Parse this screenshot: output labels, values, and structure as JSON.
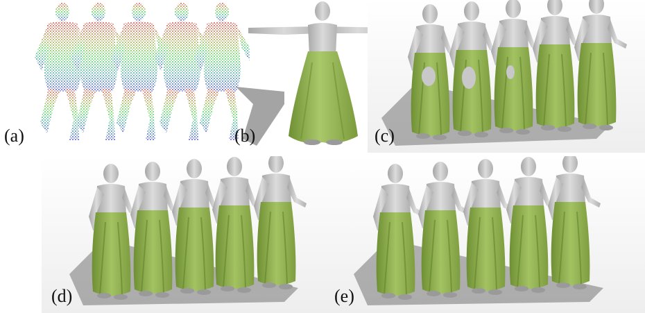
{
  "figure": {
    "panels": [
      {
        "id": "a",
        "label": "(a)",
        "content": "point-clouds",
        "frames": 5
      },
      {
        "id": "b",
        "label": "(b)",
        "content": "t-pose-with-skirt",
        "frames": 1
      },
      {
        "id": "c",
        "label": "(c)",
        "content": "running-sequence",
        "frames": 5
      },
      {
        "id": "d",
        "label": "(d)",
        "content": "running-sequence",
        "frames": 5
      },
      {
        "id": "e",
        "label": "(e)",
        "content": "running-sequence",
        "frames": 5
      }
    ]
  },
  "colors": {
    "body": "#c8c8c8",
    "skirt": "#8fb04c",
    "skirt_dark": "#6f8f34",
    "shadow": "#5a5a5a",
    "points_top": "#d21e1e",
    "points_mid": "#2fd02f",
    "points_bottom": "#1e2ac8"
  }
}
